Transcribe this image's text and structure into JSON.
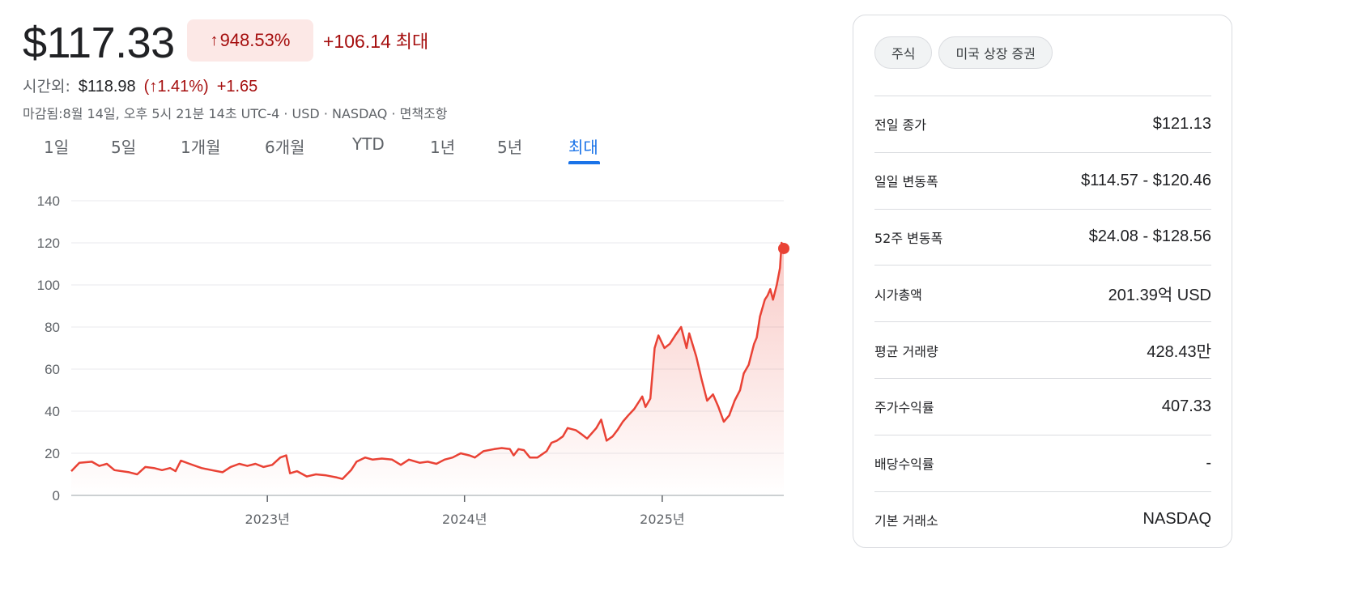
{
  "quote": {
    "price": "$117.33",
    "change_arrow": "↑",
    "change_pct": "948.53%",
    "change_abs": "+106.14",
    "change_period": "최대",
    "after_hours_label": "시간외:",
    "after_hours_price": "$118.98",
    "after_hours_pct": "(↑1.41%)",
    "after_hours_abs": "+1.65",
    "closed_info": "마감됨:8월 14일, 오후 5시 21분 14초 UTC-4 · USD · NASDAQ · 면책조항"
  },
  "tabs": [
    {
      "label": "1일"
    },
    {
      "label": "5일"
    },
    {
      "label": "1개월"
    },
    {
      "label": "6개월"
    },
    {
      "label": "YTD"
    },
    {
      "label": "1년"
    },
    {
      "label": "5년"
    },
    {
      "label": "최대"
    }
  ],
  "active_tab": "최대",
  "colors": {
    "up": "#a50e0e",
    "line": "#e94235",
    "accent": "#1a73e8",
    "grid": "#e8eaed"
  },
  "panel": {
    "chips": [
      "주식",
      "미국 상장 증권"
    ],
    "stats": [
      {
        "label": "전일 종가",
        "value": "$121.13"
      },
      {
        "label": "일일 변동폭",
        "value": "$114.57 - $120.46"
      },
      {
        "label": "52주 변동폭",
        "value": "$24.08 - $128.56"
      },
      {
        "label": "시가총액",
        "value": "201.39억 USD"
      },
      {
        "label": "평균 거래량",
        "value": "428.43만"
      },
      {
        "label": "주가수익률",
        "value": "407.33"
      },
      {
        "label": "배당수익률",
        "value": "-"
      },
      {
        "label": "기본 거래소",
        "value": "NASDAQ"
      }
    ]
  },
  "chart_data": {
    "type": "area",
    "title": "",
    "xlabel": "",
    "ylabel": "",
    "ylim": [
      0,
      140
    ],
    "yticks": [
      0,
      20,
      40,
      60,
      80,
      100,
      120,
      140
    ],
    "xlim": [
      "2022-01-03",
      "2025-08-14"
    ],
    "xticks": [
      {
        "date": "2023-01-01",
        "label": "2023년"
      },
      {
        "date": "2024-01-01",
        "label": "2024년"
      },
      {
        "date": "2025-01-01",
        "label": "2025년"
      }
    ],
    "grid": true,
    "series": [
      {
        "points": [
          [
            "2022-01-03",
            11.5
          ],
          [
            "2022-01-18",
            15.5
          ],
          [
            "2022-02-10",
            16.0
          ],
          [
            "2022-02-24",
            14.0
          ],
          [
            "2022-03-10",
            15.0
          ],
          [
            "2022-03-24",
            12.0
          ],
          [
            "2022-04-20",
            11.0
          ],
          [
            "2022-05-05",
            10.0
          ],
          [
            "2022-05-20",
            13.5
          ],
          [
            "2022-06-05",
            13.0
          ],
          [
            "2022-06-20",
            12.0
          ],
          [
            "2022-07-05",
            13.0
          ],
          [
            "2022-07-15",
            11.5
          ],
          [
            "2022-07-25",
            16.5
          ],
          [
            "2022-08-10",
            15.0
          ],
          [
            "2022-09-01",
            13.0
          ],
          [
            "2022-09-20",
            12.0
          ],
          [
            "2022-10-10",
            11.0
          ],
          [
            "2022-10-25",
            13.5
          ],
          [
            "2022-11-10",
            15.0
          ],
          [
            "2022-11-25",
            14.0
          ],
          [
            "2022-12-10",
            15.0
          ],
          [
            "2022-12-25",
            13.5
          ],
          [
            "2023-01-10",
            14.5
          ],
          [
            "2023-01-25",
            18.0
          ],
          [
            "2023-02-05",
            19.0
          ],
          [
            "2023-02-12",
            10.5
          ],
          [
            "2023-02-25",
            11.5
          ],
          [
            "2023-03-15",
            9.0
          ],
          [
            "2023-04-01",
            10.0
          ],
          [
            "2023-04-20",
            9.5
          ],
          [
            "2023-05-10",
            8.5
          ],
          [
            "2023-05-20",
            7.8
          ],
          [
            "2023-06-05",
            12.0
          ],
          [
            "2023-06-15",
            16.0
          ],
          [
            "2023-07-01",
            18.0
          ],
          [
            "2023-07-15",
            17.0
          ],
          [
            "2023-08-01",
            17.5
          ],
          [
            "2023-08-20",
            17.0
          ],
          [
            "2023-09-05",
            14.5
          ],
          [
            "2023-09-20",
            17.0
          ],
          [
            "2023-10-10",
            15.5
          ],
          [
            "2023-10-25",
            16.0
          ],
          [
            "2023-11-10",
            15.0
          ],
          [
            "2023-11-25",
            17.0
          ],
          [
            "2023-12-10",
            18.0
          ],
          [
            "2023-12-25",
            20.0
          ],
          [
            "2024-01-10",
            19.0
          ],
          [
            "2024-01-20",
            18.0
          ],
          [
            "2024-02-05",
            21.0
          ],
          [
            "2024-02-25",
            22.0
          ],
          [
            "2024-03-10",
            22.5
          ],
          [
            "2024-03-25",
            22.0
          ],
          [
            "2024-04-01",
            19.0
          ],
          [
            "2024-04-10",
            22.0
          ],
          [
            "2024-04-20",
            21.5
          ],
          [
            "2024-05-01",
            18.0
          ],
          [
            "2024-05-15",
            18.0
          ],
          [
            "2024-06-01",
            21.0
          ],
          [
            "2024-06-10",
            25.0
          ],
          [
            "2024-06-20",
            26.0
          ],
          [
            "2024-07-01",
            28.0
          ],
          [
            "2024-07-10",
            32.0
          ],
          [
            "2024-07-25",
            31.0
          ],
          [
            "2024-08-05",
            29.0
          ],
          [
            "2024-08-15",
            27.0
          ],
          [
            "2024-09-01",
            32.0
          ],
          [
            "2024-09-10",
            36.0
          ],
          [
            "2024-09-20",
            26.0
          ],
          [
            "2024-10-01",
            28.0
          ],
          [
            "2024-10-10",
            31.0
          ],
          [
            "2024-10-20",
            35.0
          ],
          [
            "2024-10-30",
            38.0
          ],
          [
            "2024-11-10",
            41.0
          ],
          [
            "2024-11-20",
            45.0
          ],
          [
            "2024-11-25",
            47.0
          ],
          [
            "2024-12-01",
            42.0
          ],
          [
            "2024-12-10",
            46.0
          ],
          [
            "2024-12-18",
            70.0
          ],
          [
            "2024-12-25",
            76.0
          ],
          [
            "2025-01-05",
            70.0
          ],
          [
            "2025-01-15",
            72.0
          ],
          [
            "2025-01-25",
            76.0
          ],
          [
            "2025-02-05",
            80.0
          ],
          [
            "2025-02-15",
            70.0
          ],
          [
            "2025-02-20",
            77.0
          ],
          [
            "2025-03-05",
            66.0
          ],
          [
            "2025-03-15",
            55.0
          ],
          [
            "2025-03-25",
            45.0
          ],
          [
            "2025-04-05",
            48.0
          ],
          [
            "2025-04-15",
            42.0
          ],
          [
            "2025-04-25",
            35.0
          ],
          [
            "2025-05-05",
            38.0
          ],
          [
            "2025-05-15",
            45.0
          ],
          [
            "2025-05-25",
            50.0
          ],
          [
            "2025-06-01",
            58.0
          ],
          [
            "2025-06-10",
            62.0
          ],
          [
            "2025-06-20",
            72.0
          ],
          [
            "2025-06-25",
            75.0
          ],
          [
            "2025-07-01",
            85.0
          ],
          [
            "2025-07-10",
            93.0
          ],
          [
            "2025-07-15",
            95.0
          ],
          [
            "2025-07-20",
            98.0
          ],
          [
            "2025-07-25",
            93.0
          ],
          [
            "2025-08-01",
            100.0
          ],
          [
            "2025-08-07",
            108.0
          ],
          [
            "2025-08-10",
            120.0
          ],
          [
            "2025-08-14",
            117.33
          ]
        ]
      }
    ]
  }
}
